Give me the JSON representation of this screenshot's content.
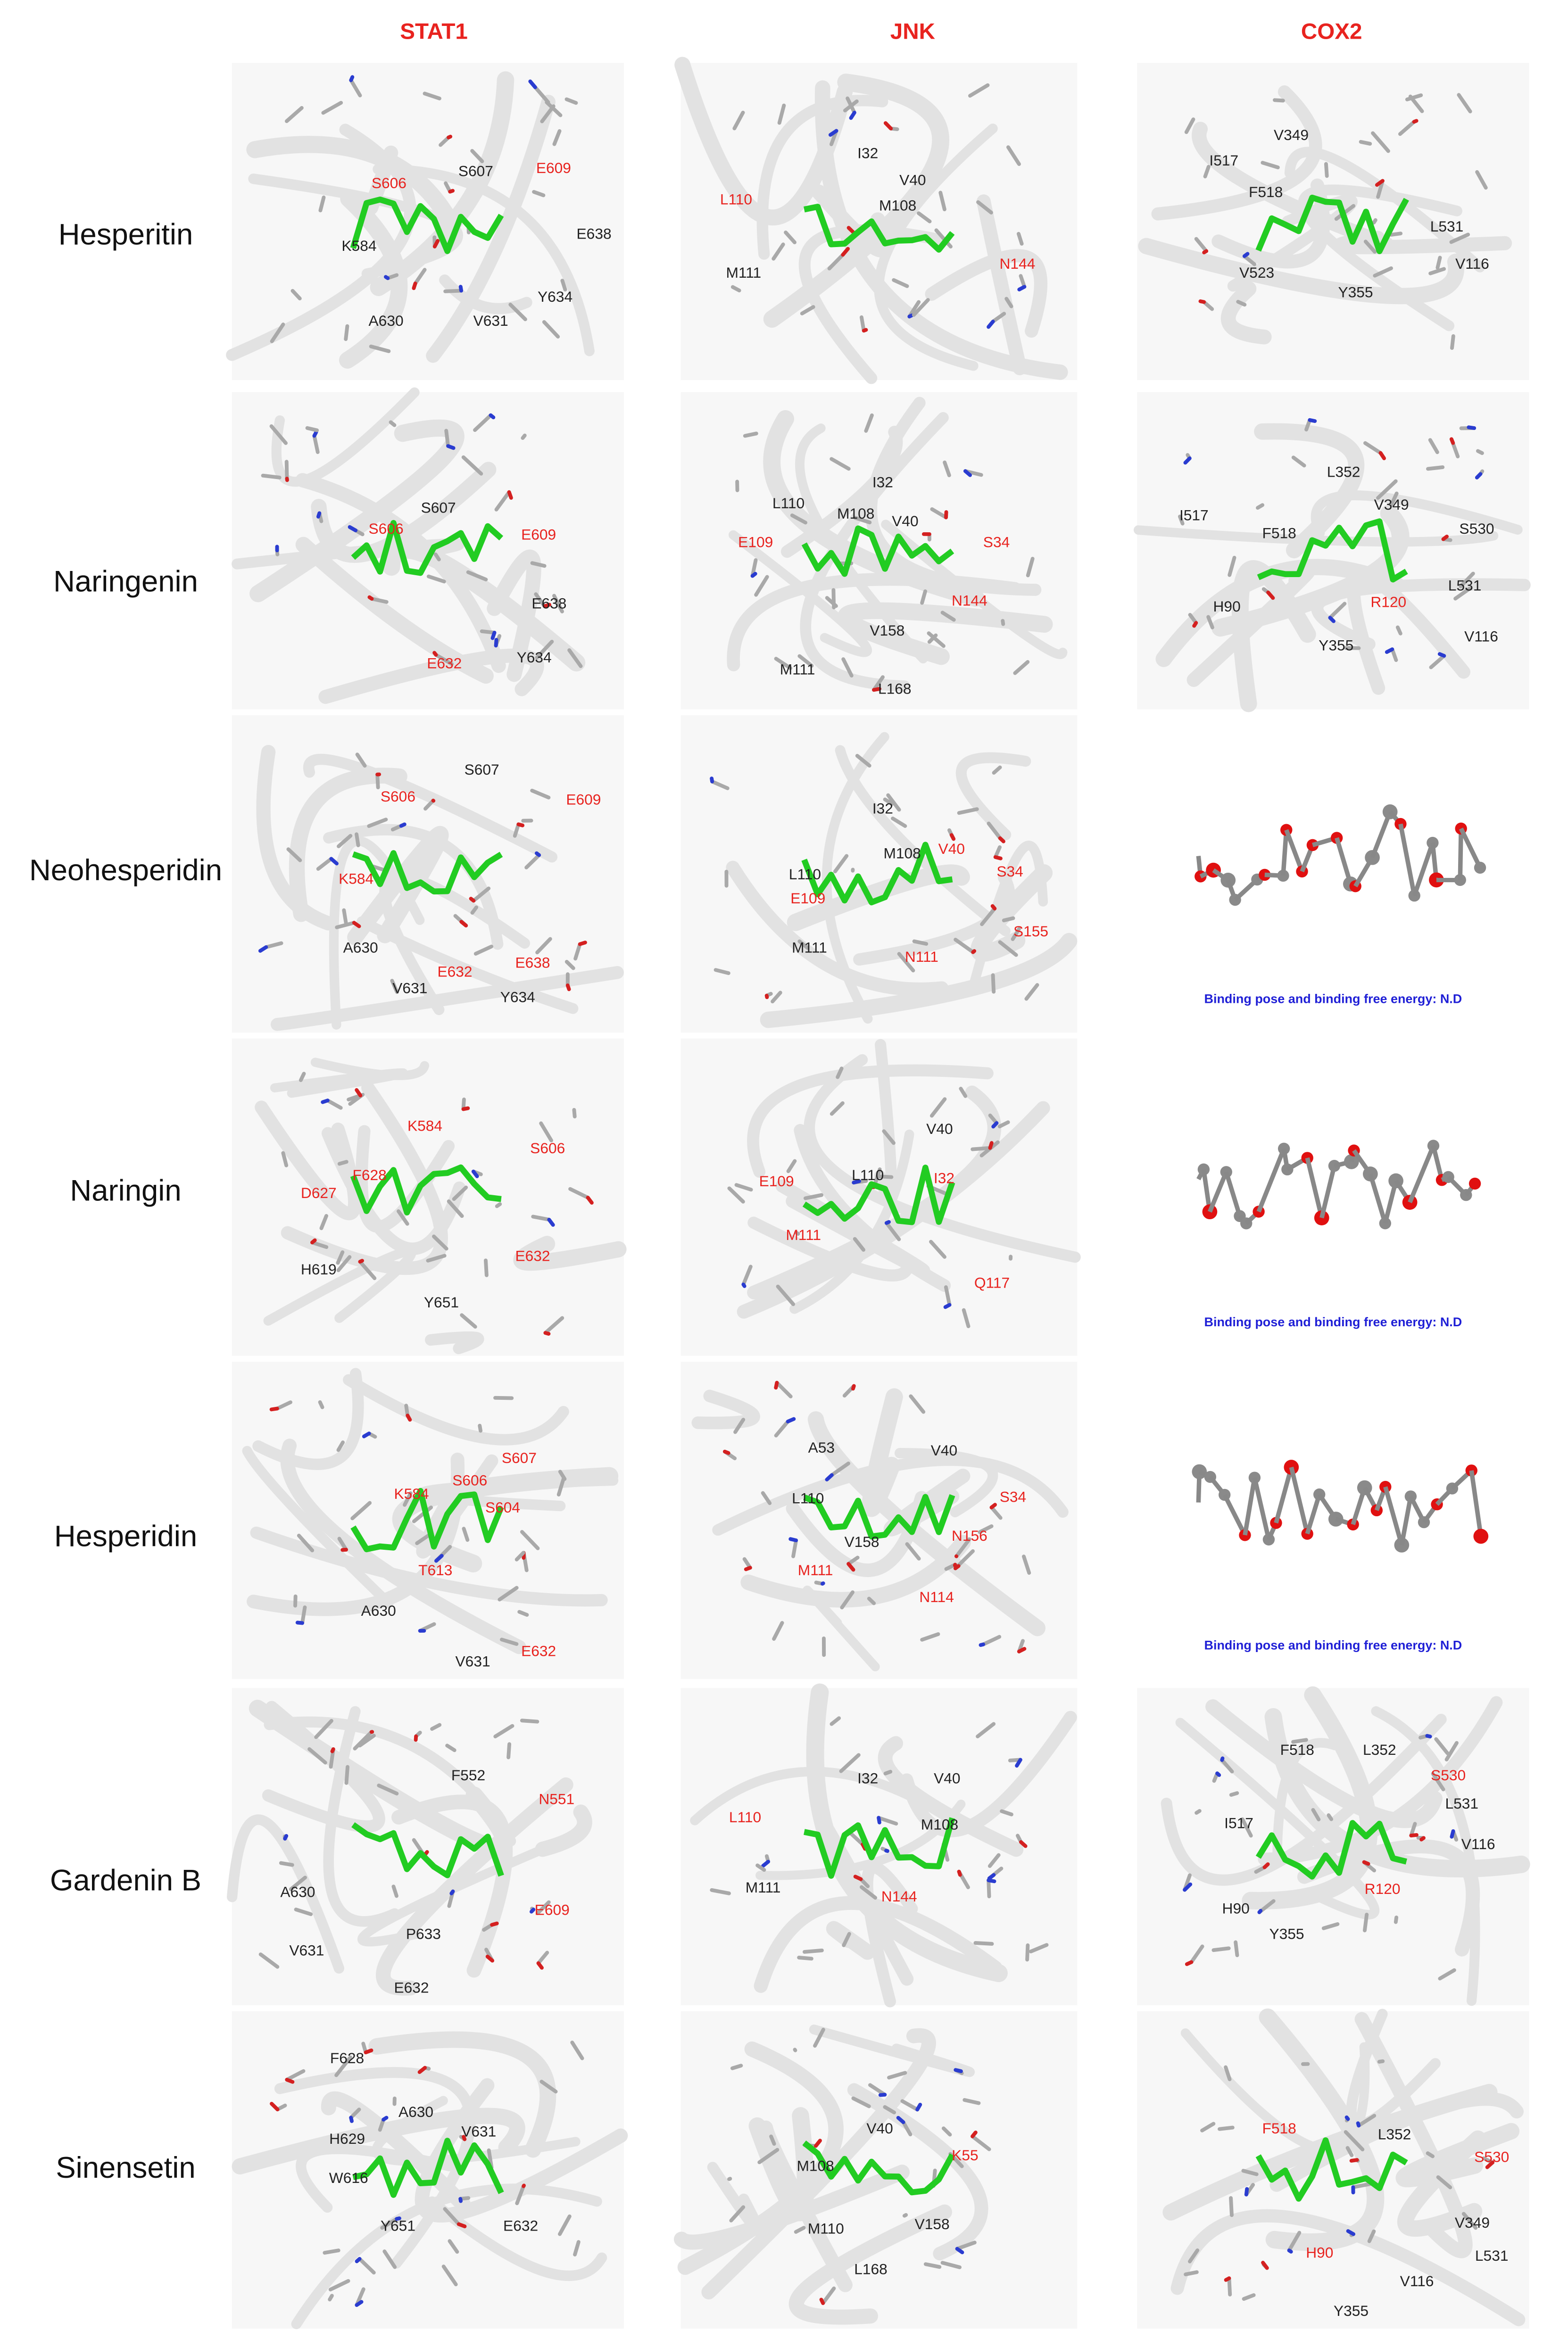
{
  "columns": [
    "STAT1",
    "JNK",
    "COX2"
  ],
  "rows": [
    {
      "name": "Hesperitin",
      "panels": [
        {
          "labels": [
            {
              "text": "S606",
              "color": "#e8231f"
            },
            {
              "text": "S607",
              "color": "#222222"
            },
            {
              "text": "E609",
              "color": "#e8231f"
            },
            {
              "text": "K584",
              "color": "#222222"
            },
            {
              "text": "E638",
              "color": "#222222"
            },
            {
              "text": "A630",
              "color": "#222222"
            },
            {
              "text": "V631",
              "color": "#222222"
            },
            {
              "text": "Y634",
              "color": "#222222"
            }
          ]
        },
        {
          "labels": [
            {
              "text": "I32",
              "color": "#222222"
            },
            {
              "text": "V40",
              "color": "#222222"
            },
            {
              "text": "L110",
              "color": "#e8231f"
            },
            {
              "text": "M108",
              "color": "#222222"
            },
            {
              "text": "M111",
              "color": "#222222"
            },
            {
              "text": "N144",
              "color": "#e8231f"
            }
          ]
        },
        {
          "labels": [
            {
              "text": "V349",
              "color": "#222222"
            },
            {
              "text": "I517",
              "color": "#222222"
            },
            {
              "text": "F518",
              "color": "#222222"
            },
            {
              "text": "L531",
              "color": "#222222"
            },
            {
              "text": "V523",
              "color": "#222222"
            },
            {
              "text": "Y355",
              "color": "#222222"
            },
            {
              "text": "V116",
              "color": "#222222"
            }
          ]
        }
      ]
    },
    {
      "name": "Naringenin",
      "panels": [
        {
          "labels": [
            {
              "text": "S607",
              "color": "#222222"
            },
            {
              "text": "S606",
              "color": "#e8231f"
            },
            {
              "text": "E609",
              "color": "#e8231f"
            },
            {
              "text": "E638",
              "color": "#222222"
            },
            {
              "text": "E632",
              "color": "#e8231f"
            },
            {
              "text": "Y634",
              "color": "#222222"
            }
          ]
        },
        {
          "labels": [
            {
              "text": "L110",
              "color": "#222222"
            },
            {
              "text": "I32",
              "color": "#222222"
            },
            {
              "text": "M108",
              "color": "#222222"
            },
            {
              "text": "V40",
              "color": "#222222"
            },
            {
              "text": "E109",
              "color": "#e8231f"
            },
            {
              "text": "S34",
              "color": "#e8231f"
            },
            {
              "text": "V158",
              "color": "#222222"
            },
            {
              "text": "N144",
              "color": "#e8231f"
            },
            {
              "text": "M111",
              "color": "#222222"
            },
            {
              "text": "L168",
              "color": "#222222"
            }
          ]
        },
        {
          "labels": [
            {
              "text": "L352",
              "color": "#222222"
            },
            {
              "text": "I517",
              "color": "#222222"
            },
            {
              "text": "F518",
              "color": "#222222"
            },
            {
              "text": "V349",
              "color": "#222222"
            },
            {
              "text": "S530",
              "color": "#222222"
            },
            {
              "text": "L531",
              "color": "#222222"
            },
            {
              "text": "H90",
              "color": "#222222"
            },
            {
              "text": "R120",
              "color": "#e8231f"
            },
            {
              "text": "Y355",
              "color": "#222222"
            },
            {
              "text": "V116",
              "color": "#222222"
            }
          ]
        }
      ]
    },
    {
      "name": "Neohesperidin",
      "panels": [
        {
          "labels": [
            {
              "text": "S607",
              "color": "#222222"
            },
            {
              "text": "S606",
              "color": "#e8231f"
            },
            {
              "text": "E609",
              "color": "#e8231f"
            },
            {
              "text": "K584",
              "color": "#e8231f"
            },
            {
              "text": "A630",
              "color": "#222222"
            },
            {
              "text": "E632",
              "color": "#e8231f"
            },
            {
              "text": "E638",
              "color": "#e8231f"
            },
            {
              "text": "V631",
              "color": "#222222"
            },
            {
              "text": "Y634",
              "color": "#222222"
            }
          ]
        },
        {
          "labels": [
            {
              "text": "I32",
              "color": "#222222"
            },
            {
              "text": "M108",
              "color": "#222222"
            },
            {
              "text": "V40",
              "color": "#e8231f"
            },
            {
              "text": "L110",
              "color": "#222222"
            },
            {
              "text": "S34",
              "color": "#e8231f"
            },
            {
              "text": "E109",
              "color": "#e8231f"
            },
            {
              "text": "M111",
              "color": "#222222"
            },
            {
              "text": "N111",
              "color": "#e8231f"
            },
            {
              "text": "S155",
              "color": "#e8231f"
            }
          ]
        },
        {
          "caption": "Binding pose and binding free energy: N.D"
        }
      ]
    },
    {
      "name": "Naringin",
      "panels": [
        {
          "labels": [
            {
              "text": "K584",
              "color": "#e8231f"
            },
            {
              "text": "S606",
              "color": "#e8231f"
            },
            {
              "text": "F628",
              "color": "#e8231f"
            },
            {
              "text": "D627",
              "color": "#e8231f"
            },
            {
              "text": "E632",
              "color": "#e8231f"
            },
            {
              "text": "H619",
              "color": "#222222"
            },
            {
              "text": "Y651",
              "color": "#222222"
            }
          ]
        },
        {
          "labels": [
            {
              "text": "V40",
              "color": "#222222"
            },
            {
              "text": "L110",
              "color": "#222222"
            },
            {
              "text": "I32",
              "color": "#e8231f"
            },
            {
              "text": "E109",
              "color": "#e8231f"
            },
            {
              "text": "M111",
              "color": "#e8231f"
            },
            {
              "text": "Q117",
              "color": "#e8231f"
            }
          ]
        },
        {
          "caption": "Binding pose and binding free energy: N.D"
        }
      ]
    },
    {
      "name": "Hesperidin",
      "panels": [
        {
          "labels": [
            {
              "text": "S607",
              "color": "#e8231f"
            },
            {
              "text": "S606",
              "color": "#e8231f"
            },
            {
              "text": "K584",
              "color": "#e8231f"
            },
            {
              "text": "S604",
              "color": "#e8231f"
            },
            {
              "text": "T613",
              "color": "#e8231f"
            },
            {
              "text": "A630",
              "color": "#222222"
            },
            {
              "text": "V631",
              "color": "#222222"
            },
            {
              "text": "E632",
              "color": "#e8231f"
            }
          ]
        },
        {
          "labels": [
            {
              "text": "A53",
              "color": "#222222"
            },
            {
              "text": "V40",
              "color": "#222222"
            },
            {
              "text": "L110",
              "color": "#222222"
            },
            {
              "text": "S34",
              "color": "#e8231f"
            },
            {
              "text": "N156",
              "color": "#e8231f"
            },
            {
              "text": "V158",
              "color": "#222222"
            },
            {
              "text": "M111",
              "color": "#e8231f"
            },
            {
              "text": "N114",
              "color": "#e8231f"
            }
          ]
        },
        {
          "caption": "Binding pose and binding free energy: N.D"
        }
      ]
    },
    {
      "name": "Gardenin B",
      "panels": [
        {
          "labels": [
            {
              "text": "F552",
              "color": "#222222"
            },
            {
              "text": "N551",
              "color": "#e8231f"
            },
            {
              "text": "A630",
              "color": "#222222"
            },
            {
              "text": "P633",
              "color": "#222222"
            },
            {
              "text": "E609",
              "color": "#e8231f"
            },
            {
              "text": "V631",
              "color": "#222222"
            },
            {
              "text": "E632",
              "color": "#222222"
            }
          ]
        },
        {
          "labels": [
            {
              "text": "I32",
              "color": "#222222"
            },
            {
              "text": "V40",
              "color": "#222222"
            },
            {
              "text": "L110",
              "color": "#e8231f"
            },
            {
              "text": "M108",
              "color": "#222222"
            },
            {
              "text": "M111",
              "color": "#222222"
            },
            {
              "text": "N144",
              "color": "#e8231f"
            }
          ]
        },
        {
          "labels": [
            {
              "text": "F518",
              "color": "#222222"
            },
            {
              "text": "L352",
              "color": "#222222"
            },
            {
              "text": "S530",
              "color": "#e8231f"
            },
            {
              "text": "I517",
              "color": "#222222"
            },
            {
              "text": "L531",
              "color": "#222222"
            },
            {
              "text": "V116",
              "color": "#222222"
            },
            {
              "text": "R120",
              "color": "#e8231f"
            },
            {
              "text": "H90",
              "color": "#222222"
            },
            {
              "text": "Y355",
              "color": "#222222"
            }
          ]
        }
      ]
    },
    {
      "name": "Sinensetin",
      "panels": [
        {
          "labels": [
            {
              "text": "F628",
              "color": "#222222"
            },
            {
              "text": "A630",
              "color": "#222222"
            },
            {
              "text": "H629",
              "color": "#222222"
            },
            {
              "text": "V631",
              "color": "#222222"
            },
            {
              "text": "W616",
              "color": "#222222"
            },
            {
              "text": "Y651",
              "color": "#222222"
            },
            {
              "text": "E632",
              "color": "#222222"
            }
          ]
        },
        {
          "labels": [
            {
              "text": "V40",
              "color": "#222222"
            },
            {
              "text": "K55",
              "color": "#e8231f"
            },
            {
              "text": "M108",
              "color": "#222222"
            },
            {
              "text": "M110",
              "color": "#222222"
            },
            {
              "text": "V158",
              "color": "#222222"
            },
            {
              "text": "L168",
              "color": "#222222"
            }
          ]
        },
        {
          "labels": [
            {
              "text": "F518",
              "color": "#e8231f"
            },
            {
              "text": "L352",
              "color": "#222222"
            },
            {
              "text": "S530",
              "color": "#e8231f"
            },
            {
              "text": "V349",
              "color": "#222222"
            },
            {
              "text": "H90",
              "color": "#e8231f"
            },
            {
              "text": "L531",
              "color": "#222222"
            },
            {
              "text": "V116",
              "color": "#222222"
            },
            {
              "text": "Y355",
              "color": "#222222"
            }
          ]
        }
      ]
    }
  ],
  "caption_color": "#1f1fd6",
  "header_color": "#e8231f"
}
